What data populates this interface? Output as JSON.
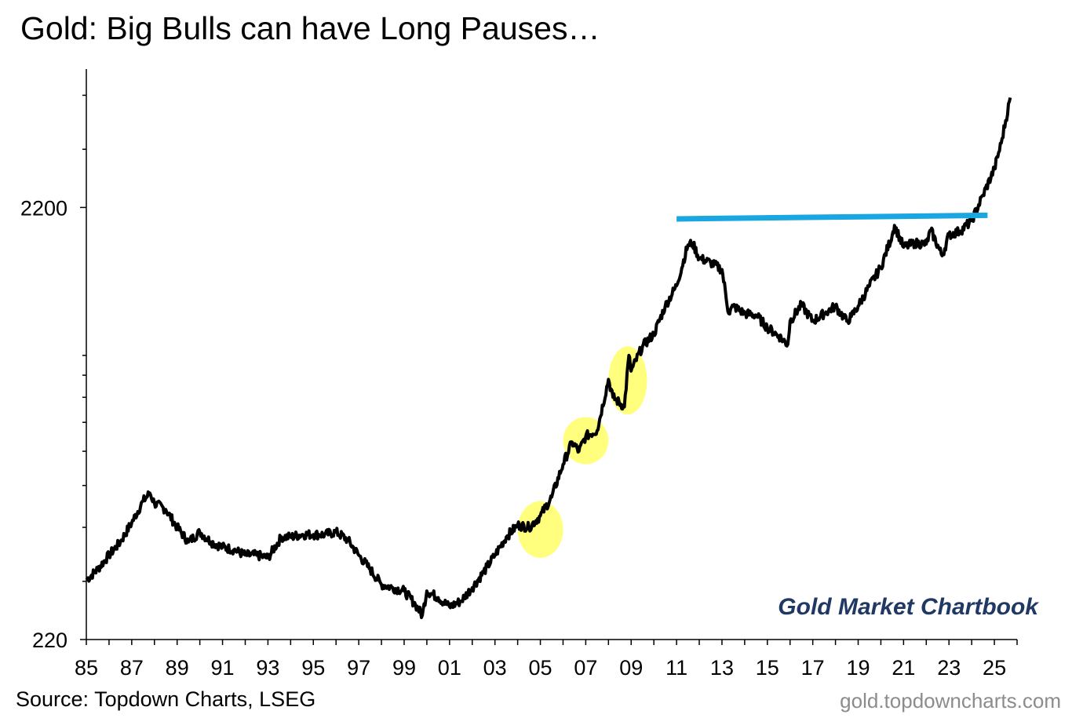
{
  "title": "Gold: Big Bulls can have Long Pauses…",
  "source": "Source: Topdown Charts, LSEG",
  "website": "gold.topdowncharts.com",
  "brand": "Gold Market Chartbook",
  "colors": {
    "line": "#000000",
    "resistance": "#1aa7e1",
    "highlight": "#ffff66",
    "brand": "#1f3864"
  },
  "chart_data": {
    "type": "line",
    "scale": "log",
    "title": "Gold: Big Bulls can have Long Pauses…",
    "xlabel": "",
    "ylabel": "",
    "xlim": [
      1985,
      2026
    ],
    "ylim": [
      220,
      4600
    ],
    "y_ticks": [
      220,
      2200
    ],
    "x_ticks": [
      "85",
      "87",
      "89",
      "91",
      "93",
      "95",
      "97",
      "99",
      "01",
      "03",
      "05",
      "07",
      "09",
      "11",
      "13",
      "15",
      "17",
      "19",
      "21",
      "23",
      "25"
    ],
    "grid": false,
    "series": [
      {
        "name": "",
        "x": [
          1985.0,
          1985.5,
          1986.0,
          1986.5,
          1987.0,
          1987.5,
          1987.8,
          1988.0,
          1988.5,
          1989.0,
          1989.5,
          1990.0,
          1990.5,
          1991.0,
          1991.5,
          1992.0,
          1992.5,
          1993.0,
          1993.6,
          1994.0,
          1994.5,
          1995.0,
          1995.5,
          1996.0,
          1996.5,
          1997.0,
          1997.5,
          1998.0,
          1998.5,
          1999.0,
          1999.5,
          1999.8,
          2000.0,
          2000.5,
          2001.0,
          2001.5,
          2002.0,
          2002.5,
          2003.0,
          2003.5,
          2004.0,
          2004.5,
          2005.0,
          2005.5,
          2006.0,
          2006.4,
          2006.7,
          2007.0,
          2007.5,
          2008.0,
          2008.2,
          2008.7,
          2008.9,
          2009.0,
          2009.5,
          2010.0,
          2010.5,
          2011.0,
          2011.5,
          2011.7,
          2012.0,
          2012.5,
          2013.0,
          2013.3,
          2013.5,
          2014.0,
          2014.5,
          2015.0,
          2015.5,
          2015.9,
          2016.0,
          2016.5,
          2017.0,
          2017.5,
          2018.0,
          2018.5,
          2018.7,
          2019.0,
          2019.5,
          2020.0,
          2020.5,
          2020.6,
          2021.0,
          2021.5,
          2022.0,
          2022.2,
          2022.7,
          2023.0,
          2023.5,
          2024.0,
          2024.5,
          2025.0,
          2025.3,
          2025.7
        ],
        "values": [
          302,
          320,
          345,
          370,
          410,
          460,
          480,
          455,
          440,
          400,
          370,
          390,
          370,
          360,
          355,
          345,
          345,
          340,
          380,
          380,
          385,
          385,
          385,
          390,
          375,
          345,
          320,
          295,
          290,
          285,
          265,
          250,
          285,
          275,
          262,
          270,
          290,
          315,
          345,
          380,
          405,
          400,
          425,
          470,
          560,
          630,
          600,
          650,
          670,
          880,
          800,
          760,
          1000,
          920,
          1050,
          1120,
          1300,
          1450,
          1800,
          1820,
          1680,
          1640,
          1580,
          1250,
          1300,
          1250,
          1240,
          1160,
          1110,
          1060,
          1200,
          1310,
          1200,
          1250,
          1300,
          1200,
          1230,
          1300,
          1450,
          1600,
          1900,
          2000,
          1780,
          1820,
          1810,
          1950,
          1700,
          1900,
          1940,
          2050,
          2350,
          2700,
          3100,
          3950
        ]
      }
    ],
    "annotations": [
      {
        "type": "horizontal_line",
        "x": [
          2011.0,
          2024.7
        ],
        "y": [
          2070,
          2110
        ]
      },
      {
        "type": "highlight",
        "x": [
          2004.0,
          2006.0
        ],
        "y": [
          340,
          460
        ]
      },
      {
        "type": "highlight",
        "x": [
          2006.0,
          2008.0
        ],
        "y": [
          560,
          720
        ]
      },
      {
        "type": "highlight",
        "x": [
          2008.0,
          2009.7
        ],
        "y": [
          730,
          1050
        ]
      }
    ]
  }
}
